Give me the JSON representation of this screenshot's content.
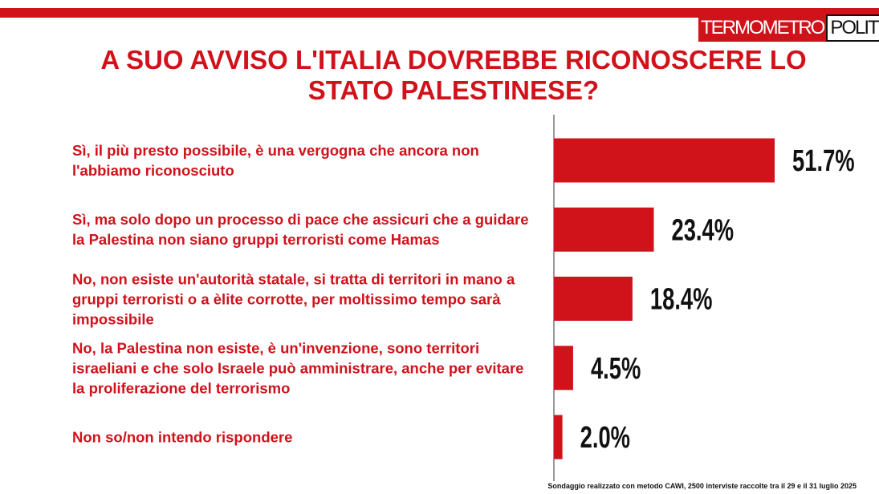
{
  "logo": {
    "left": "TERMOMETRO",
    "right": "POLITICO"
  },
  "chart_data": {
    "type": "bar",
    "orientation": "horizontal",
    "title": "A SUO AVVISO L'ITALIA DOVREBBE RICONOSCERE LO STATO PALESTINESE?",
    "categories": [
      "Sì, il più presto possibile, è una vergogna che ancora non l'abbiamo riconosciuto",
      "Sì, ma solo dopo un processo di pace che assicuri che a guidare la Palestina non siano gruppi terroristi come Hamas",
      "No, non esiste un'autorità statale, si tratta di territori in mano a gruppi terroristi o a èlite corrotte, per moltissimo tempo sarà impossibile",
      "No, la Palestina non esiste, è un'invenzione, sono territori israeliani e che solo Israele può amministrare, anche per evitare la proliferazione del terrorismo",
      "Non so/non intendo rispondere"
    ],
    "values": [
      51.7,
      23.4,
      18.4,
      4.5,
      2.0
    ],
    "value_labels": [
      "51.7%",
      "23.4%",
      "18.4%",
      "4.5%",
      "2.0%"
    ],
    "color": "#d0121b",
    "note": "Sondaggio realizzato con metodo CAWI, 2500 interviste raccolte tra il 29 e il 31 luglio 2025"
  }
}
